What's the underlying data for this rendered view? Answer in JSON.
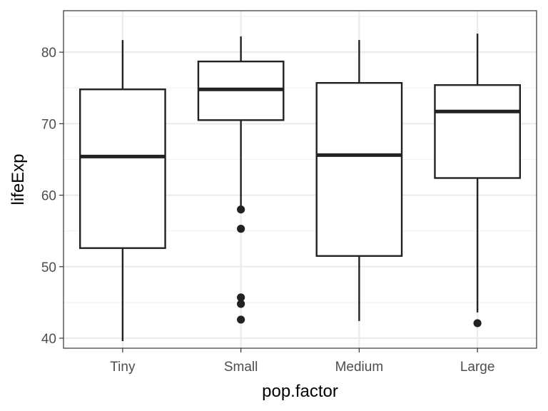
{
  "chart_data": {
    "type": "box",
    "title": "",
    "xlabel": "pop.factor",
    "ylabel": "lifeExp",
    "ylim": [
      38.6,
      85.8
    ],
    "yticks": [
      40,
      50,
      60,
      70,
      80
    ],
    "y_minor_ticks": [
      45,
      55,
      65,
      75,
      85
    ],
    "grid": true,
    "legend": "none",
    "categories": [
      "Tiny",
      "Small",
      "Medium",
      "Large"
    ],
    "boxes": [
      {
        "category": "Tiny",
        "whisker_low": 39.6,
        "q1": 52.6,
        "median": 65.4,
        "q3": 74.8,
        "whisker_high": 81.7,
        "outliers": []
      },
      {
        "category": "Small",
        "whisker_low": 58.5,
        "q1": 70.5,
        "median": 74.8,
        "q3": 78.7,
        "whisker_high": 82.2,
        "outliers": [
          58.0,
          55.3,
          45.7,
          44.8,
          42.6
        ]
      },
      {
        "category": "Medium",
        "whisker_low": 42.4,
        "q1": 51.5,
        "median": 65.6,
        "q3": 75.7,
        "whisker_high": 81.7,
        "outliers": []
      },
      {
        "category": "Large",
        "whisker_low": 43.6,
        "q1": 62.4,
        "median": 71.7,
        "q3": 75.4,
        "whisker_high": 82.6,
        "outliers": [
          42.1
        ]
      }
    ]
  },
  "colors": {
    "panel_border": "#333333",
    "grid_major": "#ebebeb",
    "grid_minor": "#f2f2f2",
    "box_fill": "#ffffff",
    "box_line": "#222222",
    "tick_text": "#4d4d4d",
    "title_text": "#000000"
  }
}
